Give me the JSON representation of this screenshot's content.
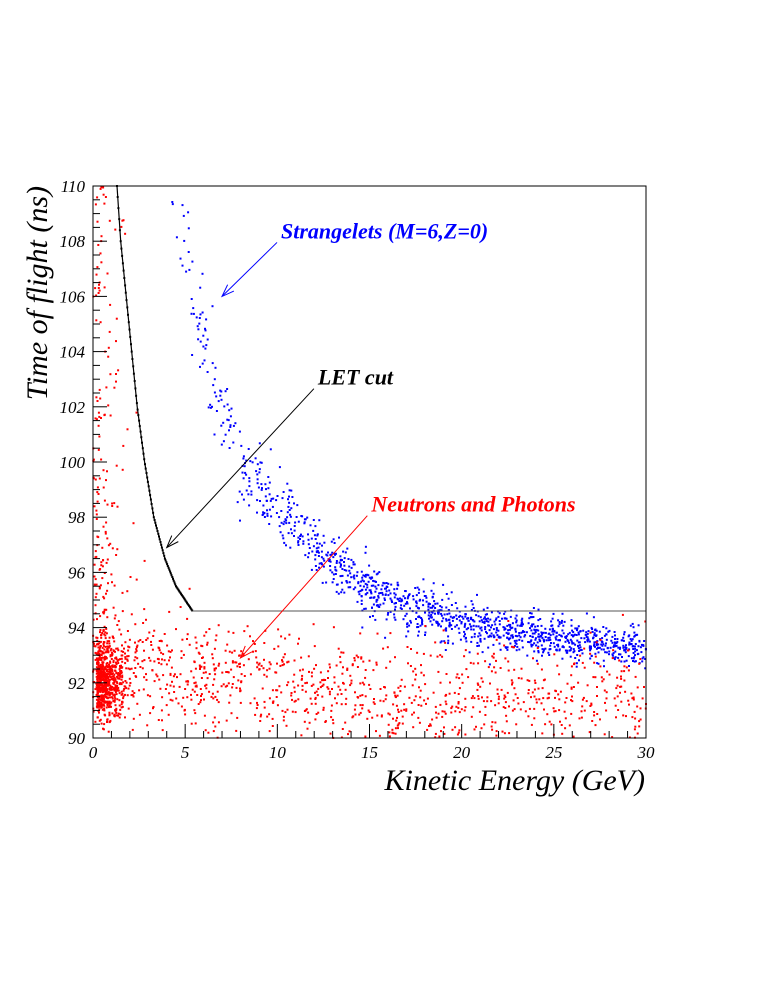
{
  "chart_data": {
    "type": "scatter",
    "title": "",
    "xlabel": "Kinetic Energy (GeV)",
    "ylabel": "Time of flight (ns)",
    "xlim": [
      0,
      30
    ],
    "ylim": [
      90,
      110
    ],
    "x_ticks": [
      "0",
      "5",
      "10",
      "15",
      "20",
      "25",
      "30"
    ],
    "y_ticks": [
      "90",
      "92",
      "94",
      "96",
      "98",
      "100",
      "102",
      "104",
      "106",
      "108",
      "110"
    ],
    "grid": false,
    "legend": "none",
    "series": [
      {
        "name": "Strangelets (M=6,Z=0)",
        "color": "#0000ff",
        "label_at": {
          "x": 10.2,
          "y": 108.1
        },
        "arrow_to": {
          "x": 7.0,
          "y": 106.0
        },
        "description_of_distribution": "dense band from TOF ~110 ns near 4 GeV falling to ~93.5 ns near 30 GeV",
        "points_sample": [
          [
            4.5,
            109.5
          ],
          [
            5.0,
            107.5
          ],
          [
            5.5,
            106.0
          ],
          [
            6.0,
            104.5
          ],
          [
            6.5,
            103.2
          ],
          [
            7.0,
            102.0
          ],
          [
            7.5,
            101.0
          ],
          [
            8.0,
            100.0
          ],
          [
            9.0,
            99.0
          ],
          [
            10.0,
            98.2
          ],
          [
            11.0,
            97.5
          ],
          [
            12.0,
            97.0
          ],
          [
            13.0,
            96.4
          ],
          [
            14.0,
            95.9
          ],
          [
            15.0,
            95.5
          ],
          [
            16.0,
            95.1
          ],
          [
            18.0,
            94.6
          ],
          [
            20.0,
            94.2
          ],
          [
            22.0,
            93.9
          ],
          [
            24.0,
            93.7
          ],
          [
            26.0,
            93.5
          ],
          [
            28.0,
            93.4
          ],
          [
            30.0,
            93.3
          ]
        ]
      },
      {
        "name": "Neutrons and Photons",
        "color": "#ff0000",
        "label_at": {
          "x": 15.1,
          "y": 98.2
        },
        "arrow_to": {
          "x": 8.0,
          "y": 92.9
        },
        "description_of_distribution": "cluster around TOF ~92 ns at low energy, spread 90-95 ns across 0-30 GeV, sparse tail up to 110 ns below 2 GeV",
        "points_sample": [
          [
            0.5,
            92.0
          ],
          [
            1.0,
            92.2
          ],
          [
            2.0,
            92.8
          ],
          [
            4.0,
            92.6
          ],
          [
            6.0,
            92.5
          ],
          [
            8.0,
            92.4
          ],
          [
            10.0,
            92.0
          ],
          [
            15.0,
            91.8
          ],
          [
            20.0,
            91.5
          ],
          [
            25.0,
            91.5
          ],
          [
            30.0,
            91.5
          ]
        ]
      },
      {
        "name": "LET cut",
        "color": "#000000",
        "label_at": {
          "x": 12.2,
          "y": 102.8
        },
        "arrow_to": {
          "x": 4.0,
          "y": 96.9
        },
        "description_of_distribution": "dotted curve from (1.3, 110) falling to (5.4, 94.6), then horizontal line at 94.6 ns to 30 GeV",
        "points_sample": [
          [
            1.3,
            110.0
          ],
          [
            1.5,
            108.0
          ],
          [
            1.8,
            106.0
          ],
          [
            2.1,
            104.0
          ],
          [
            2.4,
            102.0
          ],
          [
            2.8,
            100.0
          ],
          [
            3.3,
            98.0
          ],
          [
            3.9,
            96.5
          ],
          [
            4.5,
            95.5
          ],
          [
            5.4,
            94.6
          ],
          [
            30.0,
            94.6
          ]
        ]
      }
    ]
  }
}
